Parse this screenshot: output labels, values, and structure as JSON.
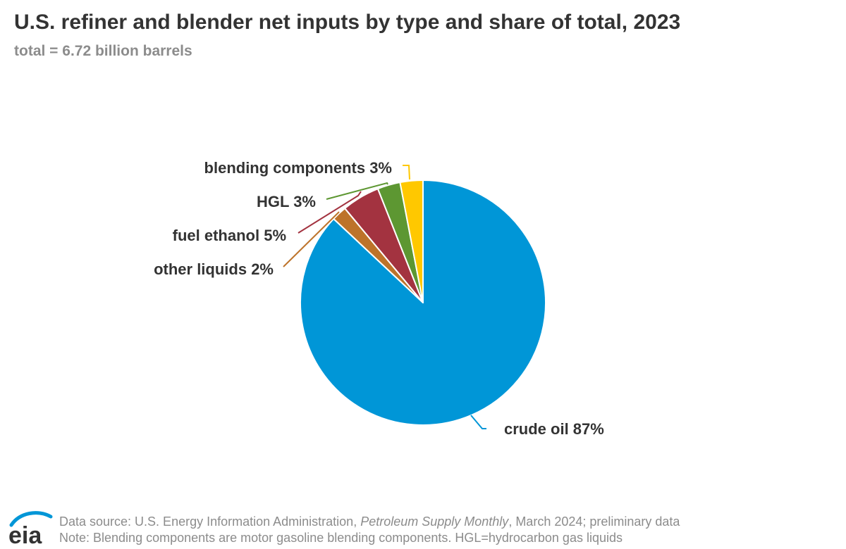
{
  "title": "U.S. refiner and blender net inputs by type and share of total, 2023",
  "subtitle": "total = 6.72 billion barrels",
  "chart_data": {
    "type": "pie",
    "title": "U.S. refiner and blender net inputs by type and share of total, 2023",
    "subtitle": "total = 6.72 billion barrels",
    "slices": [
      {
        "label": "crude oil 87%",
        "value": 87,
        "color": "#0096d7"
      },
      {
        "label": "other liquids 2%",
        "value": 2,
        "color": "#bd732a"
      },
      {
        "label": "fuel ethanol 5%",
        "value": 5,
        "color": "#a33340"
      },
      {
        "label": "HGL 3%",
        "value": 3,
        "color": "#5d9732"
      },
      {
        "label": "blending components 3%",
        "value": 3,
        "color": "#ffc800"
      }
    ]
  },
  "footer": {
    "source_prefix": "Data source: U.S. Energy Information Administration, ",
    "source_publication": "Petroleum Supply Monthly",
    "source_suffix": ", March 2024; preliminary data",
    "note": "Note: Blending components are motor gasoline blending components. HGL=hydrocarbon gas liquids"
  },
  "logo": {
    "text": "eia",
    "color": "#0096d7"
  }
}
